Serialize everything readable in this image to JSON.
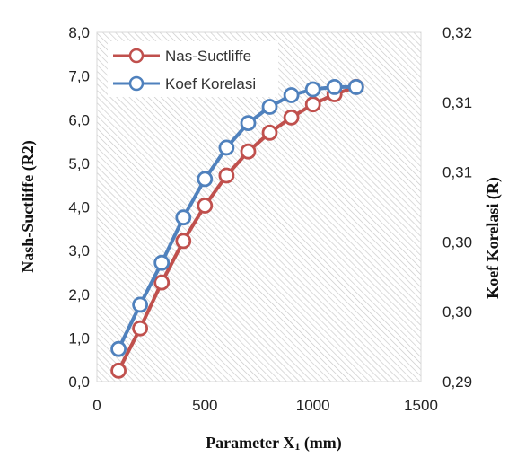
{
  "chart_data": {
    "type": "line",
    "xlabel_main": "Parameter X",
    "xlabel_sub": "1",
    "xlabel_unit": " (mm)",
    "ylabel_left": "Nash-Suctliffe (R2)",
    "ylabel_right": "Koef Korelasi (R)",
    "xlim": [
      0,
      1500
    ],
    "ylim_left": [
      0,
      8
    ],
    "ylim_right": [
      0.29,
      0.32
    ],
    "x_ticks": [
      "0",
      "500",
      "1000",
      "1500"
    ],
    "y_left_ticks": [
      "0,0",
      "1,0",
      "2,0",
      "3,0",
      "4,0",
      "5,0",
      "6,0",
      "7,0",
      "8,0"
    ],
    "y_right_ticks": [
      "0,29",
      "0,30",
      "0,30",
      "0,31",
      "0,31",
      "0,32"
    ],
    "grid": "hatched plot area",
    "legend_position": "top-left",
    "series": [
      {
        "name": "Nas-Suctliffe",
        "axis": "left",
        "color": "#c0504d",
        "x": [
          100,
          200,
          300,
          400,
          500,
          600,
          700,
          800,
          900,
          1000,
          1100,
          1200
        ],
        "y": [
          0.25,
          1.22,
          2.27,
          3.22,
          4.03,
          4.72,
          5.27,
          5.7,
          6.05,
          6.35,
          6.58,
          6.75
        ]
      },
      {
        "name": "Koef Korelasi",
        "axis": "right",
        "color": "#4f81bd",
        "x": [
          100,
          200,
          300,
          400,
          500,
          600,
          700,
          800,
          900,
          1000,
          1100,
          1200
        ],
        "y": [
          0.2928,
          0.2966,
          0.3002,
          0.3041,
          0.3074,
          0.3101,
          0.3122,
          0.3136,
          0.3146,
          0.3151,
          0.3153,
          0.3153
        ]
      }
    ]
  }
}
